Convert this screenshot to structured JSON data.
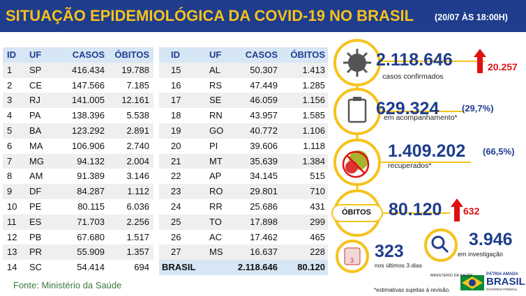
{
  "header": {
    "title": "SITUAÇÃO EPIDEMIOLÓGICA DA COVID-19 NO BRASIL",
    "date": "(20/07 ÀS 18:00H)"
  },
  "left_table": {
    "columns": [
      "ID",
      "UF",
      "CASOS",
      "ÓBITOS"
    ],
    "rows": [
      [
        "1",
        "SP",
        "416.434",
        "19.788"
      ],
      [
        "2",
        "CE",
        "147.566",
        "7.185"
      ],
      [
        "3",
        "RJ",
        "141.005",
        "12.161"
      ],
      [
        "4",
        "PA",
        "138.396",
        "5.538"
      ],
      [
        "5",
        "BA",
        "123.292",
        "2.891"
      ],
      [
        "6",
        "MA",
        "106.906",
        "2.740"
      ],
      [
        "7",
        "MG",
        "94.132",
        "2.004"
      ],
      [
        "8",
        "AM",
        "91.389",
        "3.146"
      ],
      [
        "9",
        "DF",
        "84.287",
        "1.112"
      ],
      [
        "10",
        "PE",
        "80.115",
        "6.036"
      ],
      [
        "11",
        "ES",
        "71.703",
        "2.256"
      ],
      [
        "12",
        "PB",
        "67.680",
        "1.517"
      ],
      [
        "13",
        "PR",
        "55.909",
        "1.357"
      ],
      [
        "14",
        "SC",
        "54.414",
        "694"
      ]
    ]
  },
  "right_table": {
    "columns": [
      "ID",
      "UF",
      "CASOS",
      "ÓBITOS"
    ],
    "rows": [
      [
        "15",
        "AL",
        "50.307",
        "1.413"
      ],
      [
        "16",
        "RS",
        "47.449",
        "1.285"
      ],
      [
        "17",
        "SE",
        "46.059",
        "1.156"
      ],
      [
        "18",
        "RN",
        "43.957",
        "1.585"
      ],
      [
        "19",
        "GO",
        "40.772",
        "1.106"
      ],
      [
        "20",
        "PI",
        "39.606",
        "1.118"
      ],
      [
        "21",
        "MT",
        "35.639",
        "1.384"
      ],
      [
        "22",
        "AP",
        "34.145",
        "515"
      ],
      [
        "23",
        "RO",
        "29.801",
        "710"
      ],
      [
        "24",
        "RR",
        "25.686",
        "431"
      ],
      [
        "25",
        "TO",
        "17.898",
        "299"
      ],
      [
        "26",
        "AC",
        "17.462",
        "465"
      ],
      [
        "27",
        "MS",
        "16.637",
        "228"
      ]
    ],
    "total": [
      "BRASIL",
      "2.118.646",
      "80.120"
    ]
  },
  "stats": {
    "confirmed": {
      "value": "2.118.646",
      "label": "casos confirmados",
      "new": "20.257"
    },
    "monitoring": {
      "value": "629.324",
      "pct": "(29,7%)",
      "label": "em acompanhamento*"
    },
    "recovered": {
      "value": "1.409.202",
      "pct": "(66,5%)",
      "label": "recuperados*"
    },
    "deaths": {
      "badge": "ÓBITOS",
      "value": "80.120",
      "new": "632"
    },
    "investigation": {
      "value": "3.946",
      "label": "em investigação"
    },
    "last_days": {
      "icon": "3",
      "value": "323",
      "label": "nos últimos 3 dias"
    }
  },
  "footer": {
    "source": "Fonte: Ministério da Saúde",
    "note": "*estimativas sujeitas à revisão.",
    "ministry": "MINISTÉRIO DA SAÚDE",
    "slogan": "PÁTRIA AMADA",
    "brand": "BRASIL",
    "gov": "GOVERNO FEDERAL"
  }
}
